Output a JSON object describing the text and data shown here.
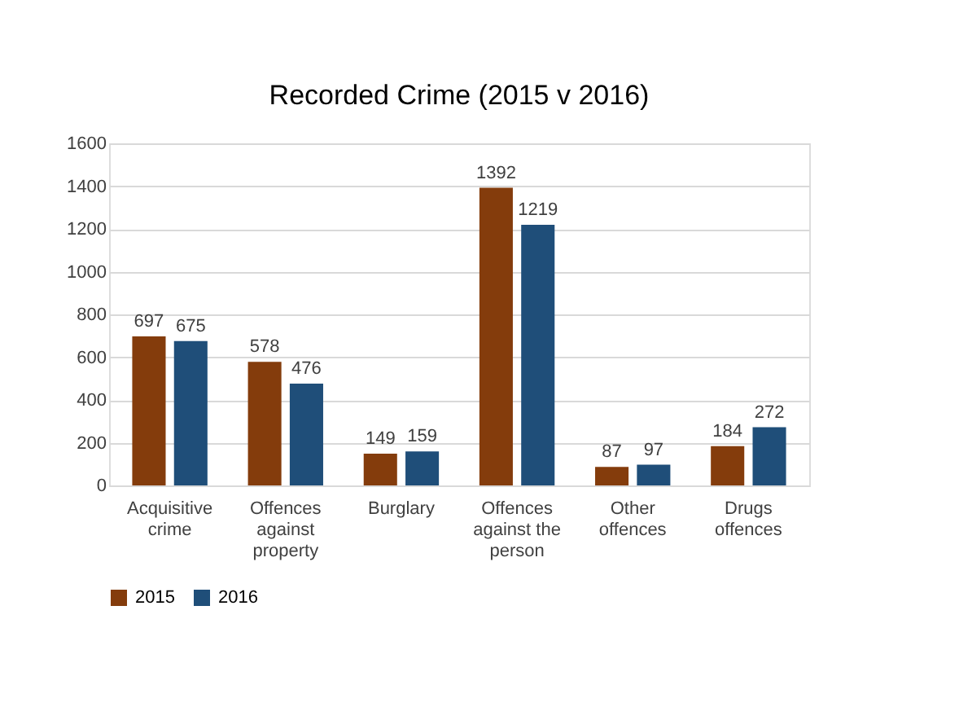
{
  "chart_data": {
    "type": "bar",
    "title": "Recorded Crime  (2015 v 2016)",
    "categories": [
      "Acquisitive\ncrime",
      "Offences\nagainst\nproperty",
      "Burglary",
      "Offences\nagainst the\nperson",
      "Other\noffences",
      "Drugs\noffences"
    ],
    "series": [
      {
        "name": "2015",
        "color": "#843c0c",
        "values": [
          697,
          578,
          149,
          1392,
          87,
          184
        ]
      },
      {
        "name": "2016",
        "color": "#1f4e79",
        "values": [
          675,
          476,
          159,
          1219,
          97,
          272
        ]
      }
    ],
    "ylim": [
      0,
      1600
    ],
    "yticks": [
      0,
      200,
      400,
      600,
      800,
      1000,
      1200,
      1400,
      1600
    ],
    "grid": "y",
    "legend": "bottom",
    "data_labels": true
  }
}
